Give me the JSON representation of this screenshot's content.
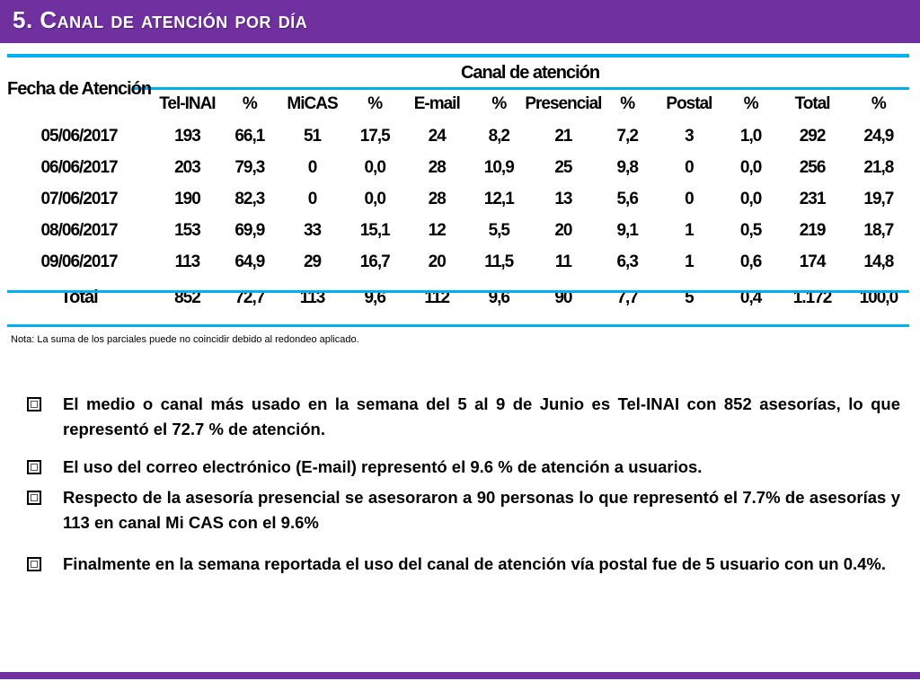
{
  "title": "5. Canal de atención por día",
  "table": {
    "date_header": "Fecha de Atención",
    "channel_header": "Canal de atención",
    "columns": [
      "Tel-INAI",
      "%",
      "MiCAS",
      "%",
      "E-mail",
      "%",
      "Presencial",
      "%",
      "Postal",
      "%",
      "Total",
      "%"
    ],
    "rows": [
      [
        "05/06/2017",
        "193",
        "66,1",
        "51",
        "17,5",
        "24",
        "8,2",
        "21",
        "7,2",
        "3",
        "1,0",
        "292",
        "24,9"
      ],
      [
        "06/06/2017",
        "203",
        "79,3",
        "0",
        "0,0",
        "28",
        "10,9",
        "25",
        "9,8",
        "0",
        "0,0",
        "256",
        "21,8"
      ],
      [
        "07/06/2017",
        "190",
        "82,3",
        "0",
        "0,0",
        "28",
        "12,1",
        "13",
        "5,6",
        "0",
        "0,0",
        "231",
        "19,7"
      ],
      [
        "08/06/2017",
        "153",
        "69,9",
        "33",
        "15,1",
        "12",
        "5,5",
        "20",
        "9,1",
        "1",
        "0,5",
        "219",
        "18,7"
      ],
      [
        "09/06/2017",
        "113",
        "64,9",
        "29",
        "16,7",
        "20",
        "11,5",
        "11",
        "6,3",
        "1",
        "0,6",
        "174",
        "14,8"
      ]
    ],
    "total_row": [
      "Total",
      "852",
      "72,7",
      "113",
      "9,6",
      "112",
      "9,6",
      "90",
      "7,7",
      "5",
      "0,4",
      "1.172",
      "100,0"
    ]
  },
  "note": "Nota: La suma de los parciales puede no coincidir debido al redondeo aplicado.",
  "bullets": [
    "El medio o canal más usado en la semana del 5 al 9 de Junio es Tel-INAI con 852 asesorías, lo que representó el 72.7 % de atención.",
    "El uso del correo electrónico (E-mail) representó el 9.6 % de atención a usuarios.",
    "Respecto de la asesoría presencial se asesoraron a 90 personas lo que representó el 7.7% de asesorías y 113 en canal Mi CAS con el 9.6%",
    "Finalmente en la semana reportada el uso del canal de atención vía postal fue de 5 usuario con un 0.4%."
  ],
  "colors": {
    "accent": "#7030A0",
    "rule": "#00B0F0"
  },
  "icons": {
    "bullet": "checkbox-square-icon"
  }
}
